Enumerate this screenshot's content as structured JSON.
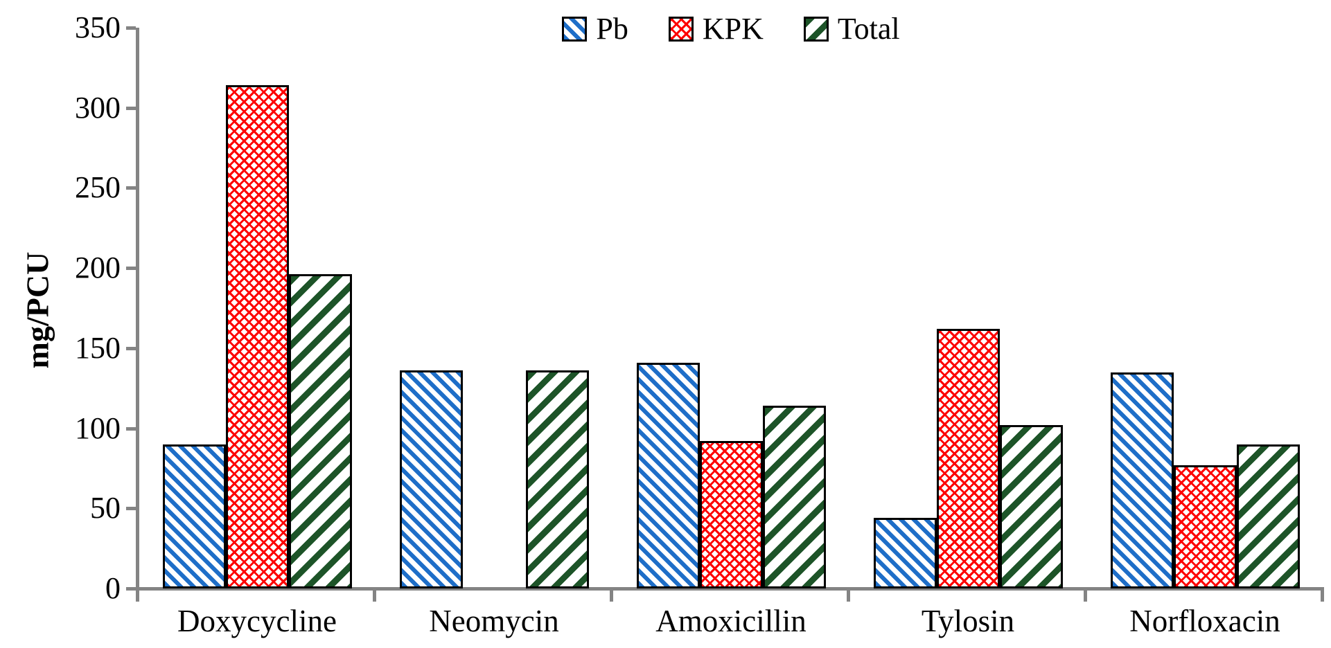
{
  "chart_data": {
    "type": "bar",
    "title": "",
    "ylabel": "mg/PCU",
    "xlabel": "",
    "ylim": [
      0,
      350
    ],
    "yticks": [
      0,
      50,
      100,
      150,
      200,
      250,
      300,
      350
    ],
    "grid": false,
    "legend_position": "top-center",
    "axis_color": "#848484",
    "bar_outline_color": "#000000",
    "categories": [
      "Doxycycline",
      "Neomycin",
      "Amoxicillin",
      "Tylosin",
      "Norfloxacin"
    ],
    "series": [
      {
        "name": "Pb",
        "color": "#1E6EC8",
        "pattern": "diagonal-down-stripes",
        "values": [
          90,
          136,
          141,
          44,
          135
        ]
      },
      {
        "name": "KPK",
        "color": "#FE0000",
        "pattern": "red-lattice-weave",
        "values": [
          314,
          null,
          92,
          162,
          77
        ]
      },
      {
        "name": "Total",
        "color": "#1D5428",
        "pattern": "diagonal-up-stripes",
        "values": [
          196,
          136,
          114,
          102,
          90
        ]
      }
    ]
  }
}
